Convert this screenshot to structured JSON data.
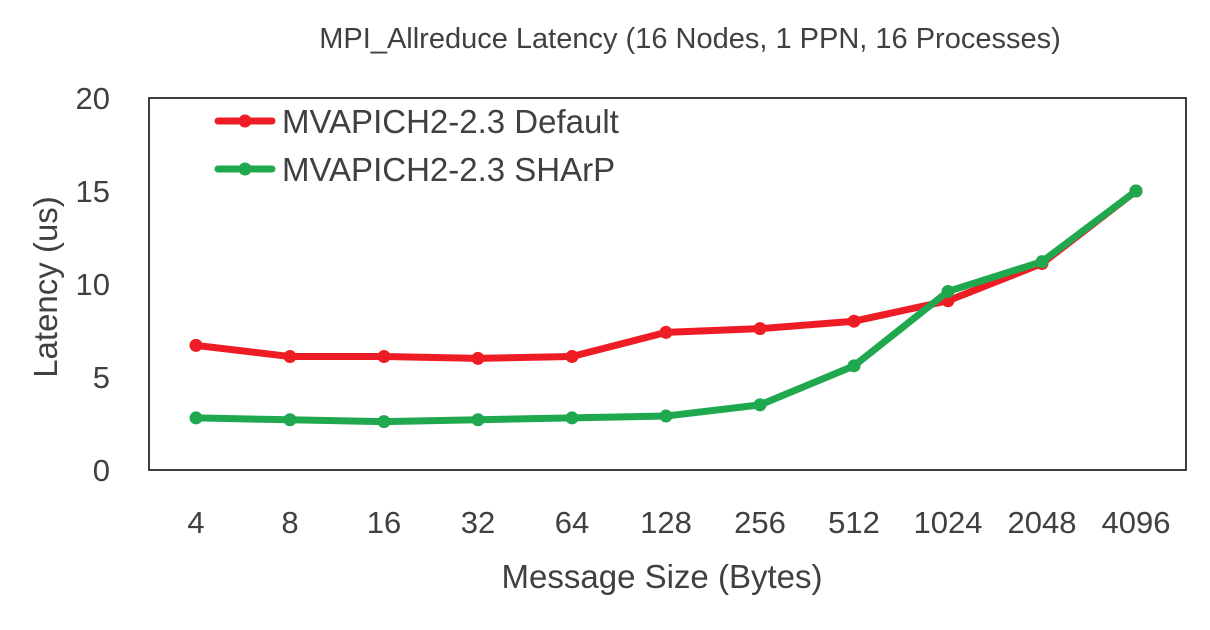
{
  "chart_data": {
    "type": "line",
    "title": "MPI_Allreduce Latency (16 Nodes, 1 PPN, 16 Processes)",
    "xlabel": "Message Size (Bytes)",
    "ylabel": "Latency (us)",
    "categories": [
      "4",
      "8",
      "16",
      "32",
      "64",
      "128",
      "256",
      "512",
      "1024",
      "2048",
      "4096"
    ],
    "yticks": [
      "0",
      "5",
      "10",
      "15",
      "20"
    ],
    "ylim": [
      0,
      20
    ],
    "grid": false,
    "legend_position": "top-left",
    "series": [
      {
        "name": "MVAPICH2-2.3 Default",
        "color": "#ee1c25",
        "values": [
          6.7,
          6.1,
          6.1,
          6.0,
          6.1,
          7.4,
          7.6,
          8.0,
          9.1,
          11.1,
          15.0
        ]
      },
      {
        "name": "MVAPICH2-2.3 SHArP",
        "color": "#1fa84e",
        "values": [
          2.8,
          2.7,
          2.6,
          2.7,
          2.8,
          2.9,
          3.5,
          5.6,
          9.6,
          11.2,
          15.0
        ]
      }
    ]
  }
}
